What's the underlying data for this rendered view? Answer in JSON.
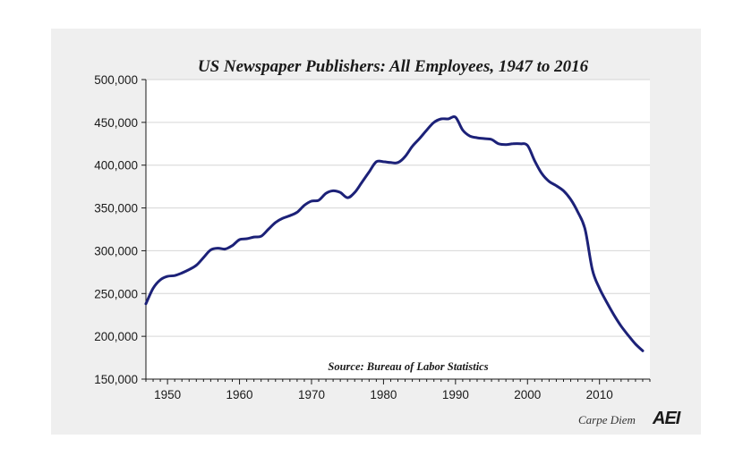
{
  "chart_data": {
    "type": "line",
    "title": "US Newspaper Publishers: All Employees, 1947 to 2016",
    "source": "Source: Bureau of Labor Statistics",
    "xlabel": "",
    "ylabel": "",
    "xlim": [
      1947,
      2017
    ],
    "ylim": [
      150000,
      500000
    ],
    "x_ticks": [
      1950,
      1960,
      1970,
      1980,
      1990,
      2000,
      2010
    ],
    "x_tick_labels": [
      "1950",
      "1960",
      "1970",
      "1980",
      "1990",
      "2000",
      "2010"
    ],
    "y_ticks": [
      150000,
      200000,
      250000,
      300000,
      350000,
      400000,
      450000,
      500000
    ],
    "y_tick_labels": [
      "150,000",
      "200,000",
      "250,000",
      "300,000",
      "350,000",
      "400,000",
      "450,000",
      "500,000"
    ],
    "grid": "horizontal",
    "line_color": "#1c2178",
    "series": [
      {
        "x": [
          1947,
          1948,
          1949,
          1950,
          1951,
          1952,
          1953,
          1954,
          1955,
          1956,
          1957,
          1958,
          1959,
          1960,
          1961,
          1962,
          1963,
          1964,
          1965,
          1966,
          1967,
          1968,
          1969,
          1970,
          1971,
          1972,
          1973,
          1974,
          1975,
          1976,
          1977,
          1978,
          1979,
          1980,
          1981,
          1982,
          1983,
          1984,
          1985,
          1986,
          1987,
          1988,
          1989,
          1990,
          1991,
          1992,
          1993,
          1994,
          1995,
          1996,
          1997,
          1998,
          1999,
          2000,
          2001,
          2002,
          2003,
          2004,
          2005,
          2006,
          2007,
          2008,
          2009,
          2010,
          2011,
          2012,
          2013,
          2014,
          2015,
          2016
        ],
        "values": [
          238000,
          256000,
          266000,
          270000,
          271000,
          274000,
          278000,
          283000,
          292000,
          301000,
          303000,
          302000,
          306000,
          313000,
          314000,
          316000,
          317000,
          325000,
          333000,
          338000,
          341000,
          345000,
          353000,
          358000,
          359000,
          367000,
          370000,
          368000,
          362000,
          368000,
          380000,
          392000,
          404000,
          404000,
          403000,
          403000,
          410000,
          422000,
          431000,
          441000,
          450000,
          454000,
          454000,
          456000,
          441000,
          434000,
          432000,
          431000,
          430000,
          425000,
          424000,
          425000,
          425000,
          423000,
          405000,
          390000,
          381000,
          376000,
          370000,
          360000,
          345000,
          325000,
          278000,
          256000,
          240000,
          225000,
          212000,
          201000,
          191000,
          183000
        ]
      }
    ]
  },
  "watermark": {
    "text": "Carpe Diem",
    "logo": "AEI"
  }
}
